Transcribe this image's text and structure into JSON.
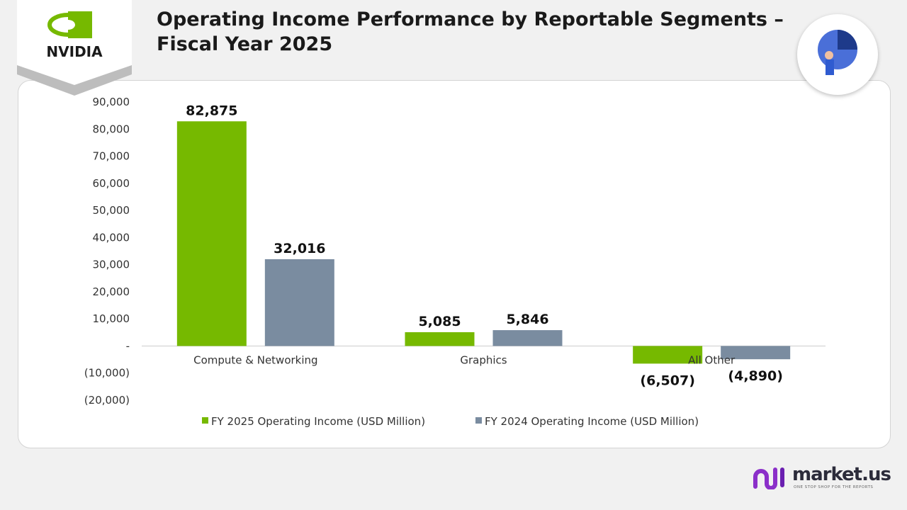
{
  "header": {
    "title": "Operating Income Performance by Reportable Segments – Fiscal Year 2025",
    "logo_text": "NVIDIA"
  },
  "footer": {
    "brand": "market.us",
    "tagline": "ONE STOP SHOP FOR THE REPORTS"
  },
  "chart_data": {
    "type": "bar",
    "title": "Operating Income Performance by Reportable Segments – Fiscal Year 2025",
    "categories": [
      "Compute & Networking",
      "Graphics",
      "All Other"
    ],
    "series": [
      {
        "name": "FY 2025 Operating Income (USD Million)",
        "color": "#76b900",
        "values": [
          82875,
          5085,
          -6507
        ],
        "labels": [
          "82,875",
          "5,085",
          "(6,507)"
        ]
      },
      {
        "name": "FY 2024 Operating Income (USD Million)",
        "color": "#7a8ca0",
        "values": [
          32016,
          5846,
          -4890
        ],
        "labels": [
          "32,016",
          "5,846",
          "(4,890)"
        ]
      }
    ],
    "ylim": [
      -20000,
      90000
    ],
    "yticks": [
      90000,
      80000,
      70000,
      60000,
      50000,
      40000,
      30000,
      20000,
      10000,
      0,
      -10000,
      -20000
    ],
    "ytick_labels": [
      "90,000",
      "80,000",
      "70,000",
      "60,000",
      "50,000",
      "40,000",
      "30,000",
      "20,000",
      "10,000",
      "-",
      "(10,000)",
      "(20,000)"
    ],
    "grid": false,
    "legend": "bottom"
  }
}
